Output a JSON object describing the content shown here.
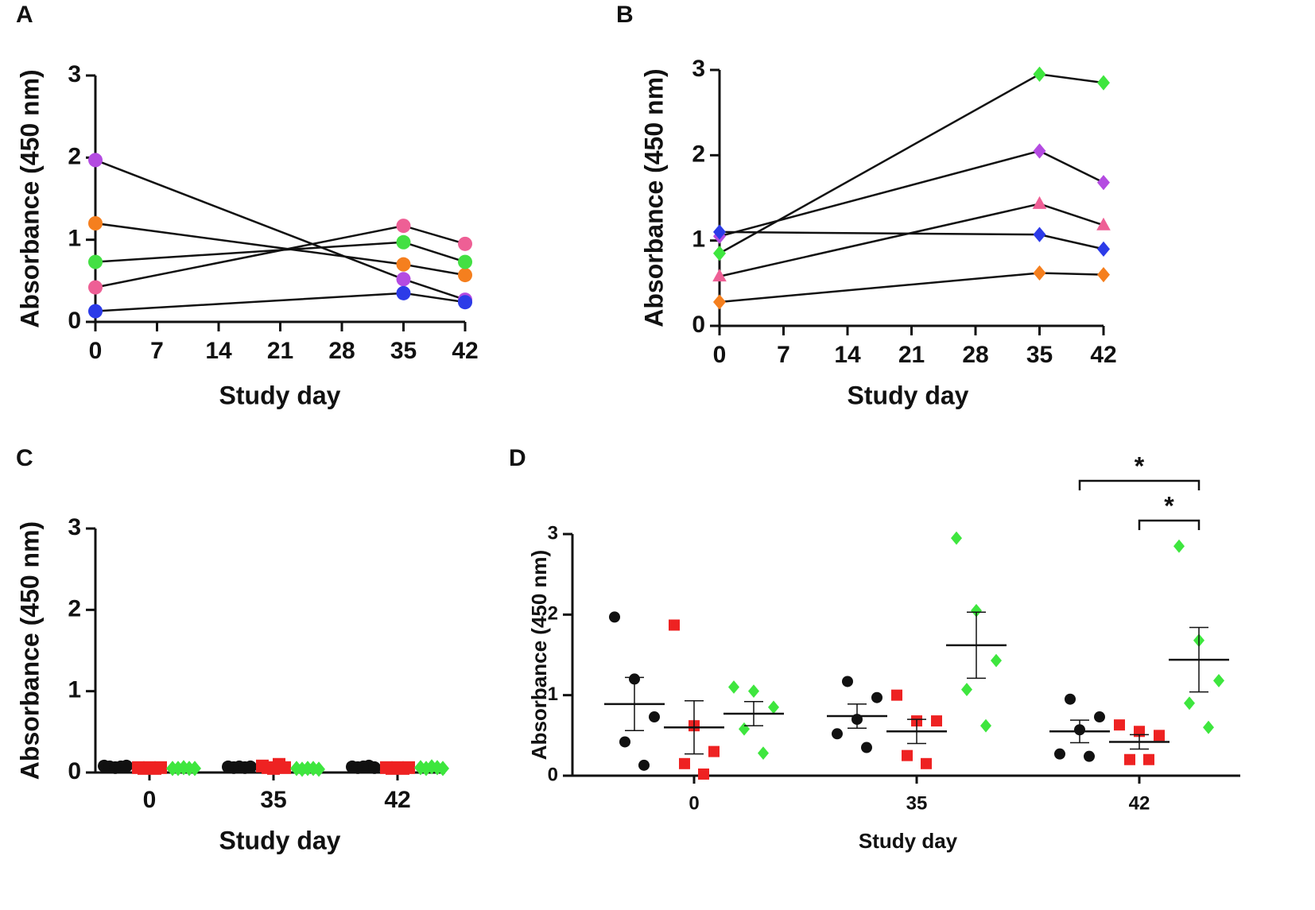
{
  "chart_data": [
    {
      "type": "line",
      "panel": "A",
      "xlabel": "Study day",
      "ylabel": "Absorbance (450 nm)",
      "x": [
        0,
        35,
        42
      ],
      "xlim": [
        0,
        42
      ],
      "xticks": [
        0,
        7,
        14,
        21,
        28,
        35,
        42
      ],
      "ylim": [
        0,
        3
      ],
      "yticks": [
        0,
        1,
        2,
        3
      ],
      "series": [
        {
          "color": "#b44be1",
          "marker": "circle",
          "values": [
            1.97,
            0.52,
            0.27
          ]
        },
        {
          "color": "#f57f1e",
          "marker": "circle",
          "values": [
            1.2,
            0.7,
            0.57
          ]
        },
        {
          "color": "#43e043",
          "marker": "circle",
          "values": [
            0.73,
            0.97,
            0.73
          ]
        },
        {
          "color": "#ee5f95",
          "marker": "circle",
          "values": [
            0.42,
            1.17,
            0.95
          ]
        },
        {
          "color": "#2c3be8",
          "marker": "circle",
          "values": [
            0.13,
            0.35,
            0.24
          ]
        }
      ]
    },
    {
      "type": "line",
      "panel": "B",
      "xlabel": "Study day",
      "ylabel": "Absorbance (450 nm)",
      "x": [
        0,
        35,
        42
      ],
      "xlim": [
        0,
        42
      ],
      "xticks": [
        0,
        7,
        14,
        21,
        28,
        35,
        42
      ],
      "ylim": [
        0,
        3
      ],
      "yticks": [
        0,
        1,
        2,
        3
      ],
      "series": [
        {
          "color": "#3ee63e",
          "marker": "diamond",
          "values": [
            0.85,
            2.95,
            2.85
          ]
        },
        {
          "color": "#b44be1",
          "marker": "diamond",
          "values": [
            1.05,
            2.05,
            1.68
          ]
        },
        {
          "color": "#ee5f95",
          "marker": "triangle",
          "values": [
            0.58,
            1.43,
            1.18
          ]
        },
        {
          "color": "#2c3be8",
          "marker": "diamond",
          "values": [
            1.1,
            1.07,
            0.9
          ]
        },
        {
          "color": "#f57f1e",
          "marker": "diamond",
          "values": [
            0.28,
            0.62,
            0.6
          ]
        }
      ]
    },
    {
      "type": "dot",
      "panel": "C",
      "xlabel": "Study day",
      "ylabel": "Absorbance (450 nm)",
      "categories": [
        "0",
        "35",
        "42"
      ],
      "ylim": [
        0,
        3
      ],
      "yticks": [
        0,
        1,
        2,
        3
      ],
      "series": [
        {
          "color": "#111111",
          "marker": "circle",
          "values": [
            [
              0.08,
              0.07,
              0.06,
              0.07,
              0.08
            ],
            [
              0.07,
              0.06,
              0.07,
              0.06,
              0.07
            ],
            [
              0.07,
              0.06,
              0.07,
              0.08,
              0.06
            ]
          ]
        },
        {
          "color": "#ee2222",
          "marker": "square",
          "values": [
            [
              0.06,
              0.05,
              0.06,
              0.05,
              0.06
            ],
            [
              0.08,
              0.06,
              0.05,
              0.1,
              0.06
            ],
            [
              0.06,
              0.05,
              0.06,
              0.05,
              0.06
            ]
          ]
        },
        {
          "color": "#3ee63e",
          "marker": "diamond",
          "values": [
            [
              0.05,
              0.05,
              0.06,
              0.05,
              0.05
            ],
            [
              0.05,
              0.04,
              0.05,
              0.05,
              0.04
            ],
            [
              0.06,
              0.05,
              0.07,
              0.06,
              0.05
            ]
          ]
        }
      ]
    },
    {
      "type": "dot",
      "panel": "D",
      "xlabel": "Study day",
      "ylabel": "Absorbance (450 nm)",
      "categories": [
        "0",
        "35",
        "42"
      ],
      "ylim": [
        0,
        3
      ],
      "yticks": [
        0,
        1,
        2,
        3
      ],
      "series": [
        {
          "color": "#111111",
          "marker": "circle",
          "values": [
            [
              1.97,
              1.2,
              0.73,
              0.42,
              0.13
            ],
            [
              0.52,
              0.7,
              0.97,
              1.17,
              0.35
            ],
            [
              0.27,
              0.57,
              0.73,
              0.95,
              0.24
            ]
          ],
          "means": [
            0.89,
            0.74,
            0.55
          ],
          "sem": [
            0.33,
            0.15,
            0.14
          ]
        },
        {
          "color": "#ee2222",
          "marker": "square",
          "values": [
            [
              1.87,
              0.62,
              0.3,
              0.15,
              0.02
            ],
            [
              1.0,
              0.68,
              0.68,
              0.25,
              0.15
            ],
            [
              0.63,
              0.55,
              0.5,
              0.2,
              0.2
            ]
          ],
          "means": [
            0.6,
            0.55,
            0.42
          ],
          "sem": [
            0.33,
            0.15,
            0.09
          ]
        },
        {
          "color": "#3ee63e",
          "marker": "diamond",
          "values": [
            [
              1.1,
              1.05,
              0.85,
              0.58,
              0.28
            ],
            [
              2.95,
              2.05,
              1.43,
              1.07,
              0.62
            ],
            [
              2.85,
              1.68,
              1.18,
              0.9,
              0.6
            ]
          ],
          "means": [
            0.77,
            1.62,
            1.44
          ],
          "sem": [
            0.15,
            0.41,
            0.4
          ]
        }
      ],
      "annotations": [
        "*",
        "*"
      ]
    }
  ]
}
